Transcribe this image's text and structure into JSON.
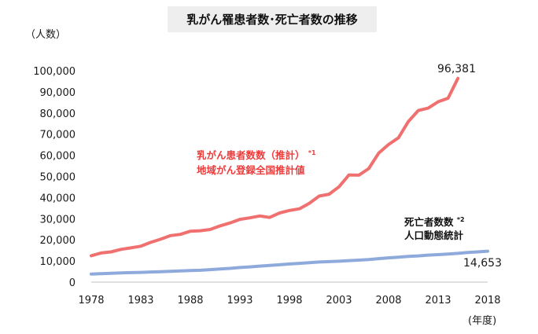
{
  "chart_data": {
    "type": "line",
    "title": "乳がん罹患者数･死亡者数の推移",
    "ylabel": "（人数）",
    "xlabel": "(年度)",
    "ylim": [
      0,
      100000
    ],
    "xlim": [
      1978,
      2018
    ],
    "y_ticks": [
      "0",
      "10,000",
      "20,000",
      "30,000",
      "40,000",
      "50,000",
      "60,000",
      "70,000",
      "80,000",
      "90,000",
      "100,000"
    ],
    "x_ticks": [
      "1978",
      "1983",
      "1988",
      "1993",
      "1998",
      "2003",
      "2008",
      "2013",
      "2018"
    ],
    "grid": false,
    "colors": {
      "incidence": "#f07070",
      "deaths": "#8ea9db"
    },
    "series": [
      {
        "key": "incidence",
        "label_line1": "乳がん患者数数（推計）",
        "label_sup": "*1",
        "label_line2": "地域がん登録全国推計値",
        "end_label": "96,381",
        "x": [
          1978,
          1979,
          1980,
          1981,
          1982,
          1983,
          1984,
          1985,
          1986,
          1987,
          1988,
          1989,
          1990,
          1991,
          1992,
          1993,
          1994,
          1995,
          1996,
          1997,
          1998,
          1999,
          2000,
          2001,
          2002,
          2003,
          2004,
          2005,
          2006,
          2007,
          2008,
          2009,
          2010,
          2011,
          2012,
          2013,
          2014,
          2015
        ],
        "values": [
          12500,
          13800,
          14300,
          15500,
          16200,
          17000,
          18800,
          20300,
          22000,
          22600,
          24100,
          24300,
          24900,
          26600,
          28000,
          29700,
          30400,
          31300,
          30600,
          32700,
          33900,
          34700,
          37300,
          40700,
          41600,
          45100,
          50700,
          50600,
          53700,
          61000,
          65100,
          68300,
          76000,
          81200,
          82300,
          85300,
          87000,
          96381
        ]
      },
      {
        "key": "deaths",
        "label_line1": "死亡者数数",
        "label_sup": "*2",
        "label_line2": "人口動態統計",
        "end_label": "14,653",
        "x": [
          1978,
          1979,
          1980,
          1981,
          1982,
          1983,
          1984,
          1985,
          1986,
          1987,
          1988,
          1989,
          1990,
          1991,
          1992,
          1993,
          1994,
          1995,
          1996,
          1997,
          1998,
          1999,
          2000,
          2001,
          2002,
          2003,
          2004,
          2005,
          2006,
          2007,
          2008,
          2009,
          2010,
          2011,
          2012,
          2013,
          2014,
          2015,
          2016,
          2017,
          2018
        ],
        "values": [
          3800,
          4000,
          4200,
          4400,
          4500,
          4600,
          4800,
          4900,
          5100,
          5300,
          5500,
          5600,
          5900,
          6200,
          6500,
          6900,
          7200,
          7600,
          7900,
          8200,
          8600,
          8900,
          9200,
          9500,
          9700,
          9900,
          10200,
          10400,
          10700,
          11100,
          11500,
          11800,
          12200,
          12400,
          12800,
          13000,
          13300,
          13600,
          14000,
          14300,
          14653
        ]
      }
    ]
  }
}
